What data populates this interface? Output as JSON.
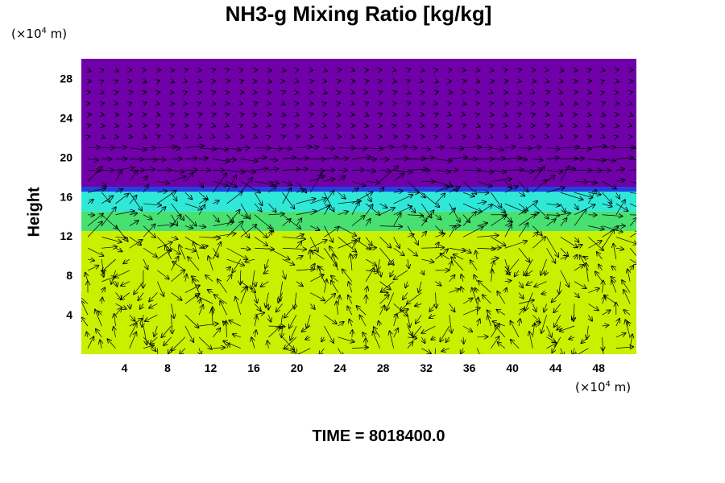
{
  "chart_data": {
    "type": "heatmap",
    "title": "NH3-g Mixing Ratio [kg/kg]",
    "ylabel": "Height",
    "x_unit_prefix": "(×10",
    "x_unit_exp": "4",
    "x_unit_suffix": " m)",
    "y_unit_prefix": "(×10",
    "y_unit_exp": "4",
    "y_unit_suffix": " m)",
    "xlim": [
      0,
      51.5
    ],
    "ylim": [
      0,
      30
    ],
    "x_ticks": [
      4,
      8,
      12,
      16,
      20,
      24,
      28,
      32,
      36,
      40,
      44,
      48
    ],
    "y_ticks": [
      4,
      8,
      12,
      16,
      20,
      24,
      28
    ],
    "layers": [
      {
        "from": 0,
        "to": 12.5,
        "color": "#c8f000"
      },
      {
        "from": 12.5,
        "to": 14.5,
        "color": "#48e070"
      },
      {
        "from": 14.5,
        "to": 16.5,
        "color": "#30e8d8"
      },
      {
        "from": 16.5,
        "to": 17.0,
        "color": "#2040e0"
      },
      {
        "from": 17.0,
        "to": 30,
        "color": "#7000a8"
      }
    ],
    "overlay": "velocity vectors",
    "footer": "TIME = 8018400.0"
  }
}
